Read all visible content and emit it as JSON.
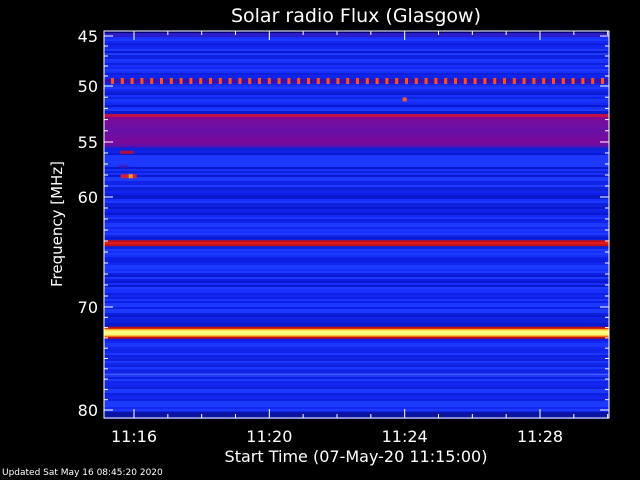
{
  "chart_data": {
    "type": "heatmap",
    "title": "Solar radio Flux (Glasgow)",
    "xlabel": "Start Time (07-May-20 11:15:00)",
    "ylabel": "Frequency [MHz]",
    "x_unit": "time (HH:MM)",
    "xlim": [
      "11:15:00",
      "11:30:15"
    ],
    "ylim": [
      45,
      80
    ],
    "y_inverted": true,
    "x_ticks": [
      "11:16",
      "11:20",
      "11:24",
      "11:28"
    ],
    "y_ticks": [
      45,
      50,
      55,
      60,
      70,
      80
    ],
    "y_scale": "frequency axis with nonuniform spacing",
    "colormap": [
      "#000080",
      "#1428ff",
      "#8a00a0",
      "#e01030",
      "#ff8000",
      "#ffff80"
    ],
    "background_level": "low (blue)",
    "features": [
      {
        "label": "narrow band",
        "freq_mhz": 44.9,
        "level": "low-medium"
      },
      {
        "label": "periodic spikes",
        "freq_mhz": 49.5,
        "level": "medium-high"
      },
      {
        "label": "broad band",
        "freq_mhz_range": [
          52.5,
          55.5
        ],
        "level": "medium"
      },
      {
        "label": "burst",
        "time": "11:24:00",
        "freq_mhz": 51.2,
        "level": "medium-high"
      },
      {
        "label": "burst",
        "time": "11:15:40",
        "freq_mhz_range": [
          55.8,
          58.2
        ],
        "level": "medium-high"
      },
      {
        "label": "strong band",
        "freq_mhz": 64.2,
        "level": "high"
      },
      {
        "label": "very strong band",
        "freq_mhz": 72.5,
        "level": "saturated"
      }
    ]
  },
  "footer": {
    "updated": "Updated Sat May 16 08:45:20 2020"
  },
  "colors": {
    "background": "#000000",
    "axis": "#ffffff",
    "text": "#ffffff"
  }
}
